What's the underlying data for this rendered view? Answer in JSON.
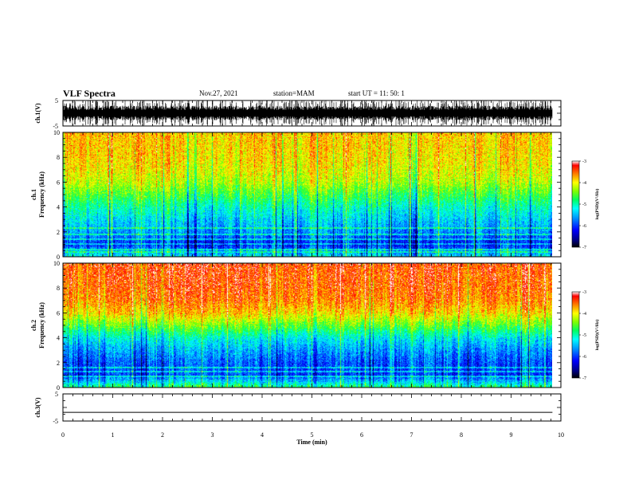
{
  "header": {
    "title": "VLF Spectra",
    "date": "Nov.27, 2021",
    "station": "station=MAM",
    "start": "start  UT =   11: 50: 1"
  },
  "chart_data": [
    {
      "type": "line",
      "panel": "ch1-waveform",
      "ylabel": "ch.1(V)",
      "ylim": [
        -5,
        5
      ],
      "yticks": [
        "5",
        "-5"
      ],
      "xlim": [
        0,
        10
      ],
      "note_values": "dense impulsive waveform spanning full range"
    },
    {
      "type": "heatmap",
      "panel": "ch1-spectrogram",
      "ylabel": "ch.1\nFrequency (kHz)",
      "ylim": [
        0,
        10
      ],
      "yticks": [
        "0",
        "2",
        "4",
        "6",
        "8",
        "10"
      ],
      "xlim": [
        0,
        9.83
      ],
      "colorbar": {
        "label": "log(PSD)(V²/Hz)",
        "range": [
          -7,
          -3
        ],
        "ticks": [
          "-3",
          "-4",
          "-5",
          "-6",
          "-7"
        ]
      },
      "profile_kHz_vs_log_psd": [
        [
          0,
          -5.2
        ],
        [
          1,
          -6.1
        ],
        [
          2,
          -5.6
        ],
        [
          3,
          -5.3
        ],
        [
          4,
          -5.0
        ],
        [
          5,
          -4.6
        ],
        [
          6,
          -4.2
        ],
        [
          7,
          -4.0
        ],
        [
          8,
          -3.9
        ],
        [
          10,
          -3.8
        ]
      ],
      "lines_kHz": [
        0.4,
        0.6,
        1.0,
        1.4,
        1.8,
        2.3
      ]
    },
    {
      "type": "heatmap",
      "panel": "ch2-spectrogram",
      "ylabel": "ch.2\nFrequency (kHz)",
      "ylim": [
        0,
        10
      ],
      "yticks": [
        "0",
        "2",
        "4",
        "6",
        "8",
        "10"
      ],
      "xlim": [
        0,
        9.83
      ],
      "colorbar": {
        "label": "log(PSD)(V²/Hz)",
        "range": [
          -7,
          -3
        ],
        "ticks": [
          "-3",
          "-4",
          "-5",
          "-6",
          "-7"
        ]
      },
      "profile_kHz_vs_log_psd": [
        [
          0,
          -4.8
        ],
        [
          1,
          -6.0
        ],
        [
          2,
          -5.9
        ],
        [
          3,
          -5.6
        ],
        [
          4,
          -5.2
        ],
        [
          5,
          -4.5
        ],
        [
          6,
          -3.9
        ],
        [
          7,
          -3.6
        ],
        [
          8,
          -3.5
        ],
        [
          10,
          -3.4
        ]
      ],
      "lines_kHz": [
        0.9,
        1.3,
        1.6
      ]
    },
    {
      "type": "line",
      "panel": "ch3-waveform",
      "ylabel": "ch.3(V)",
      "ylim": [
        -5,
        5
      ],
      "yticks": [
        "5",
        "-5"
      ],
      "xlim": [
        0,
        10
      ],
      "x": [
        0,
        9.83
      ],
      "y": [
        -1.8,
        -1.8
      ]
    }
  ],
  "xaxis": {
    "label": "Time (min)",
    "ticks": [
      "0",
      "1",
      "2",
      "3",
      "4",
      "5",
      "6",
      "7",
      "8",
      "9",
      "10"
    ]
  },
  "colors": {
    "colormap": [
      "#000080",
      "#0000ff",
      "#0080ff",
      "#00ffff",
      "#00ff80",
      "#80ff00",
      "#ffff00",
      "#ff8000",
      "#ff0000"
    ]
  }
}
